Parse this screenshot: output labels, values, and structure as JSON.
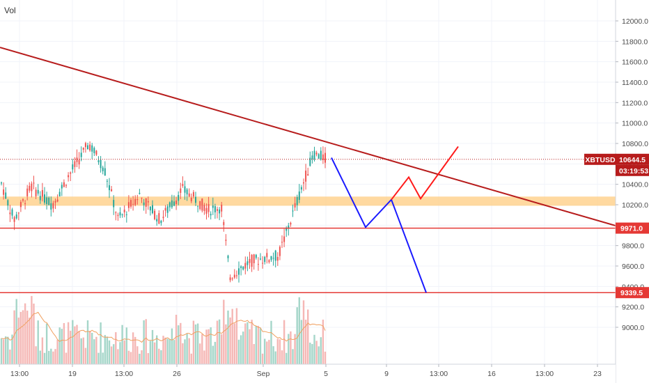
{
  "chart_data": {
    "type": "candlestick",
    "indicator_label": "Vol",
    "symbol": "XBTUSD",
    "last_price": "10644.5",
    "countdown": "03:19:53",
    "y_range": [
      8850,
      12150
    ],
    "y_ticks": [
      "9000.0",
      "9200.0",
      "9400.0",
      "9600.0",
      "9800.0",
      "10000.0",
      "10200.0",
      "10400.0",
      "10600.0",
      "10800.0",
      "11000.0",
      "11200.0",
      "11400.0",
      "11600.0",
      "11800.0",
      "12000.0"
    ],
    "x_ticks": [
      "13:00",
      "19",
      "13:00",
      "26",
      "Sep",
      "5",
      "9",
      "13:00",
      "16",
      "13:00",
      "23"
    ],
    "levels": [
      {
        "price": 9971.0,
        "label": "9971.0",
        "color": "#e53935"
      },
      {
        "price": 9339.5,
        "label": "9339.5",
        "color": "#e53935"
      }
    ],
    "zone": {
      "from": 10190,
      "to": 10280,
      "color": "#ffcc80"
    },
    "trendline": {
      "from": [
        0,
        11740
      ],
      "to": 1,
      "end_price": 9900,
      "color": "#b71c1c"
    },
    "projection_blue": [
      10660,
      9980,
      10250,
      9340
    ],
    "projection_red": [
      10250,
      10470,
      10260,
      10770
    ],
    "colors": {
      "up": "#26a69a",
      "down": "#ef5350",
      "vol_up": "#a5d6c9",
      "vol_down": "#f5b7b5",
      "ma": "#f0a060"
    }
  }
}
